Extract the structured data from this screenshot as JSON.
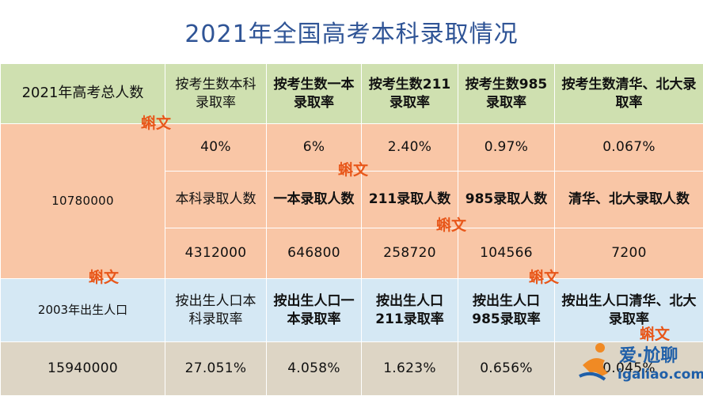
{
  "title": "2021年全国高考本科录取情况",
  "header": {
    "total_label": "2021年高考总人数",
    "cols": [
      "按考生数本科录取率",
      "按考生数一本录取率",
      "按考生数211录取率",
      "按考生数985录取率",
      "按考生数清华、北大录取率"
    ]
  },
  "exam": {
    "total": "10780000",
    "rates": [
      "40%",
      "6%",
      "2.40%",
      "0.97%",
      "0.067%"
    ],
    "count_labels": [
      "本科录取人数",
      "一本录取人数",
      "211录取人数",
      "985录取人数",
      "清华、北大录取人数"
    ],
    "counts": [
      "4312000",
      "646800",
      "258720",
      "104566",
      "7200"
    ]
  },
  "birth": {
    "label": "2003年出生人口",
    "cols": [
      "按出生人口本科录取率",
      "按出生人口一本录取率",
      "按出生人口211录取率",
      "按出生人口985录取率",
      "按出生人口清华、北大录取率"
    ],
    "total": "15940000",
    "rates": [
      "27.051%",
      "4.058%",
      "1.623%",
      "0.656%",
      "0.045%"
    ]
  },
  "watermark": {
    "stamp_text": "蝌文",
    "logo_text": "爱·尬聊",
    "logo_url": "igaliao.com"
  },
  "colors": {
    "title": "#2f5496",
    "header_green": "#cfe0b0",
    "peach": "#f9c6a6",
    "light_blue": "#d5e8f4",
    "tan": "#ddd5c5",
    "stamp_orange": "#e8571a"
  }
}
